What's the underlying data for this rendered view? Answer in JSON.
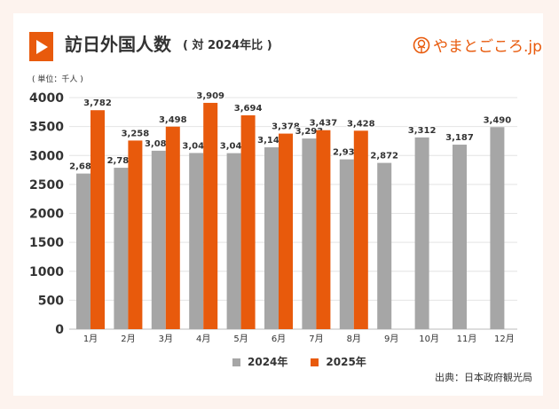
{
  "header": {
    "title": "訪日外国人数",
    "subtitle": "( 対 2024年比 )",
    "logo_text": "やまとごころ.jp"
  },
  "colors": {
    "accent": "#e85a0c",
    "series_2024": "#a6a6a6",
    "series_2025": "#e85a0c",
    "background": "#fdf3ee"
  },
  "chart_data": {
    "type": "bar",
    "title": "訪日外国人数",
    "subtitle": "( 対 2024年比 )",
    "unit_label": "( 単位：千人 )",
    "categories": [
      "1月",
      "2月",
      "3月",
      "4月",
      "5月",
      "6月",
      "7月",
      "8月",
      "9月",
      "10月",
      "11月",
      "12月"
    ],
    "series": [
      {
        "name": "2024年",
        "values": [
          2688,
          2788,
          3082,
          3043,
          3040,
          3141,
          3293,
          2933,
          2872,
          3312,
          3187,
          3490
        ],
        "labels": [
          "2,688",
          "2,788",
          "3,082",
          "3,043",
          "3,040",
          "3,141",
          "3,293",
          "2,933",
          "2,872",
          "3,312",
          "3,187",
          "3,490"
        ]
      },
      {
        "name": "2025年",
        "values": [
          3782,
          3258,
          3498,
          3909,
          3694,
          3378,
          3437,
          3428,
          null,
          null,
          null,
          null
        ],
        "labels": [
          "3,782",
          "3,258",
          "3,498",
          "3,909",
          "3,694",
          "3,378",
          "3,437",
          "3,428",
          null,
          null,
          null,
          null
        ]
      }
    ],
    "yticks": [
      "0",
      "500",
      "1000",
      "1500",
      "2000",
      "2500",
      "3000",
      "3500",
      "4000"
    ],
    "ylim": [
      0,
      4000
    ],
    "grid": true,
    "legend": "bottom"
  },
  "source": "出典：日本政府観光局"
}
